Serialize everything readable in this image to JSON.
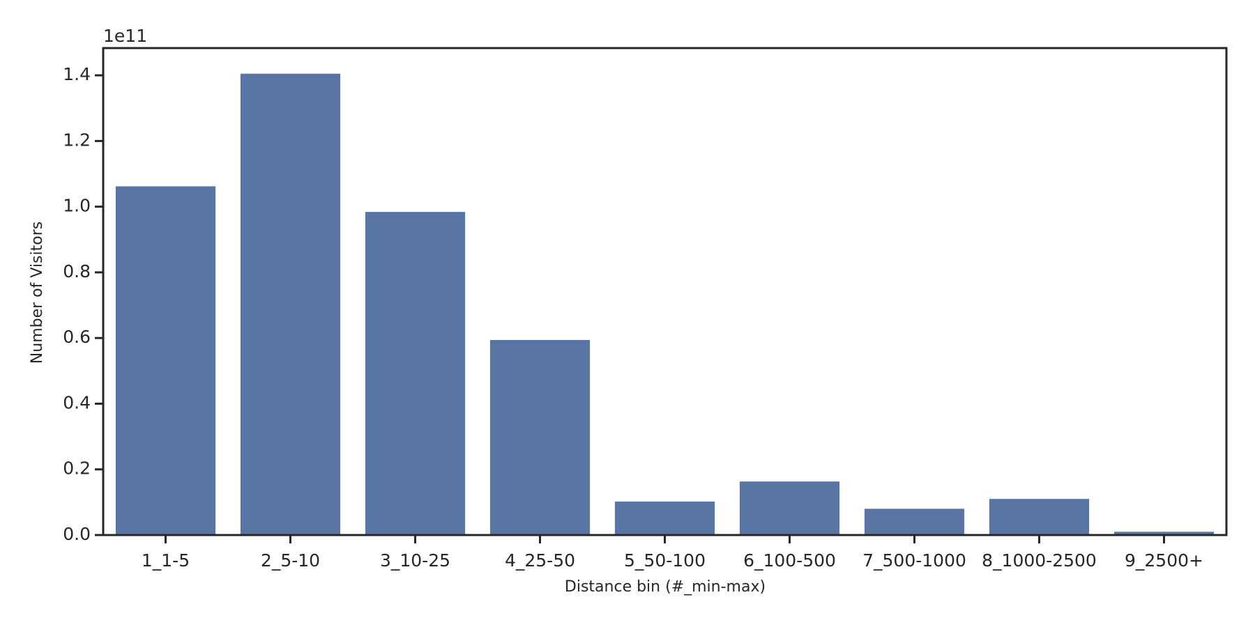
{
  "chart_data": {
    "type": "bar",
    "y_offset_label": "1e11",
    "xlabel": "Distance bin (#_min-max)",
    "ylabel": "Number of Visitors",
    "categories": [
      "1_1-5",
      "2_5-10",
      "3_10-25",
      "4_25-50",
      "5_50-100",
      "6_100-500",
      "7_500-1000",
      "8_1000-2500",
      "9_2500+"
    ],
    "values": [
      1.062,
      1.405,
      0.984,
      0.594,
      0.102,
      0.163,
      0.08,
      0.11,
      0.01
    ],
    "color": "#5975a4",
    "ylim": [
      0,
      1.483
    ],
    "yticks": [
      {
        "value": 0,
        "label": "0.0"
      },
      0.2,
      0.4,
      0.6,
      0.8,
      {
        "value": 1,
        "label": "1.0"
      },
      1.2,
      1.4
    ],
    "grid": false
  }
}
